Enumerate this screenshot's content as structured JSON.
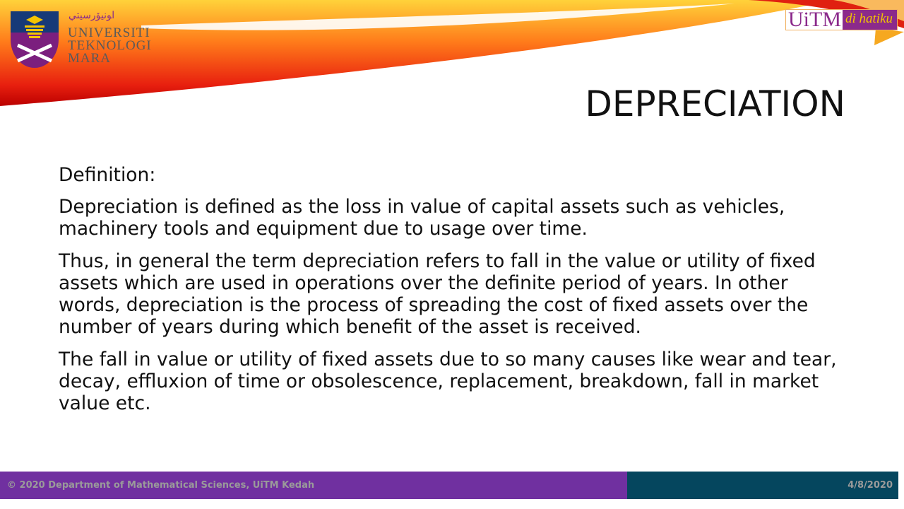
{
  "header": {
    "logo": {
      "jawi": "اونيۏرسيتي تيكنولوݢي مارا",
      "lines": [
        "UNIVERSITI",
        "TEKNOLOGI",
        "MARA"
      ]
    },
    "badge": {
      "main": "UiTM",
      "tag": "di hatiku"
    },
    "colors": {
      "purple": "#8b2a8b",
      "gold": "#f2c400"
    }
  },
  "slide": {
    "title": "DEPRECIATION",
    "paragraphs": [
      "Definition:",
      "Depreciation is defined as the loss in value of capital assets such as vehicles, machinery tools and equipment due to usage over time.",
      "Thus, in general the term depreciation refers to fall in the value or utility of fixed assets which are used in operations over the definite period of years. In other words, depreciation is the process of spreading the cost of fixed assets over the number of years during which benefit of the asset is received.",
      "The fall in value or utility of fixed assets due to so many causes like wear and tear, decay, effluxion of time or obsolescence, replacement, breakdown, fall in market value etc."
    ]
  },
  "footer": {
    "left": "© 2020 Department of Mathematical Sciences, UiTM Kedah",
    "right": "4/8/2020",
    "colors": {
      "left": "#7030a0",
      "right": "#05465e"
    }
  }
}
